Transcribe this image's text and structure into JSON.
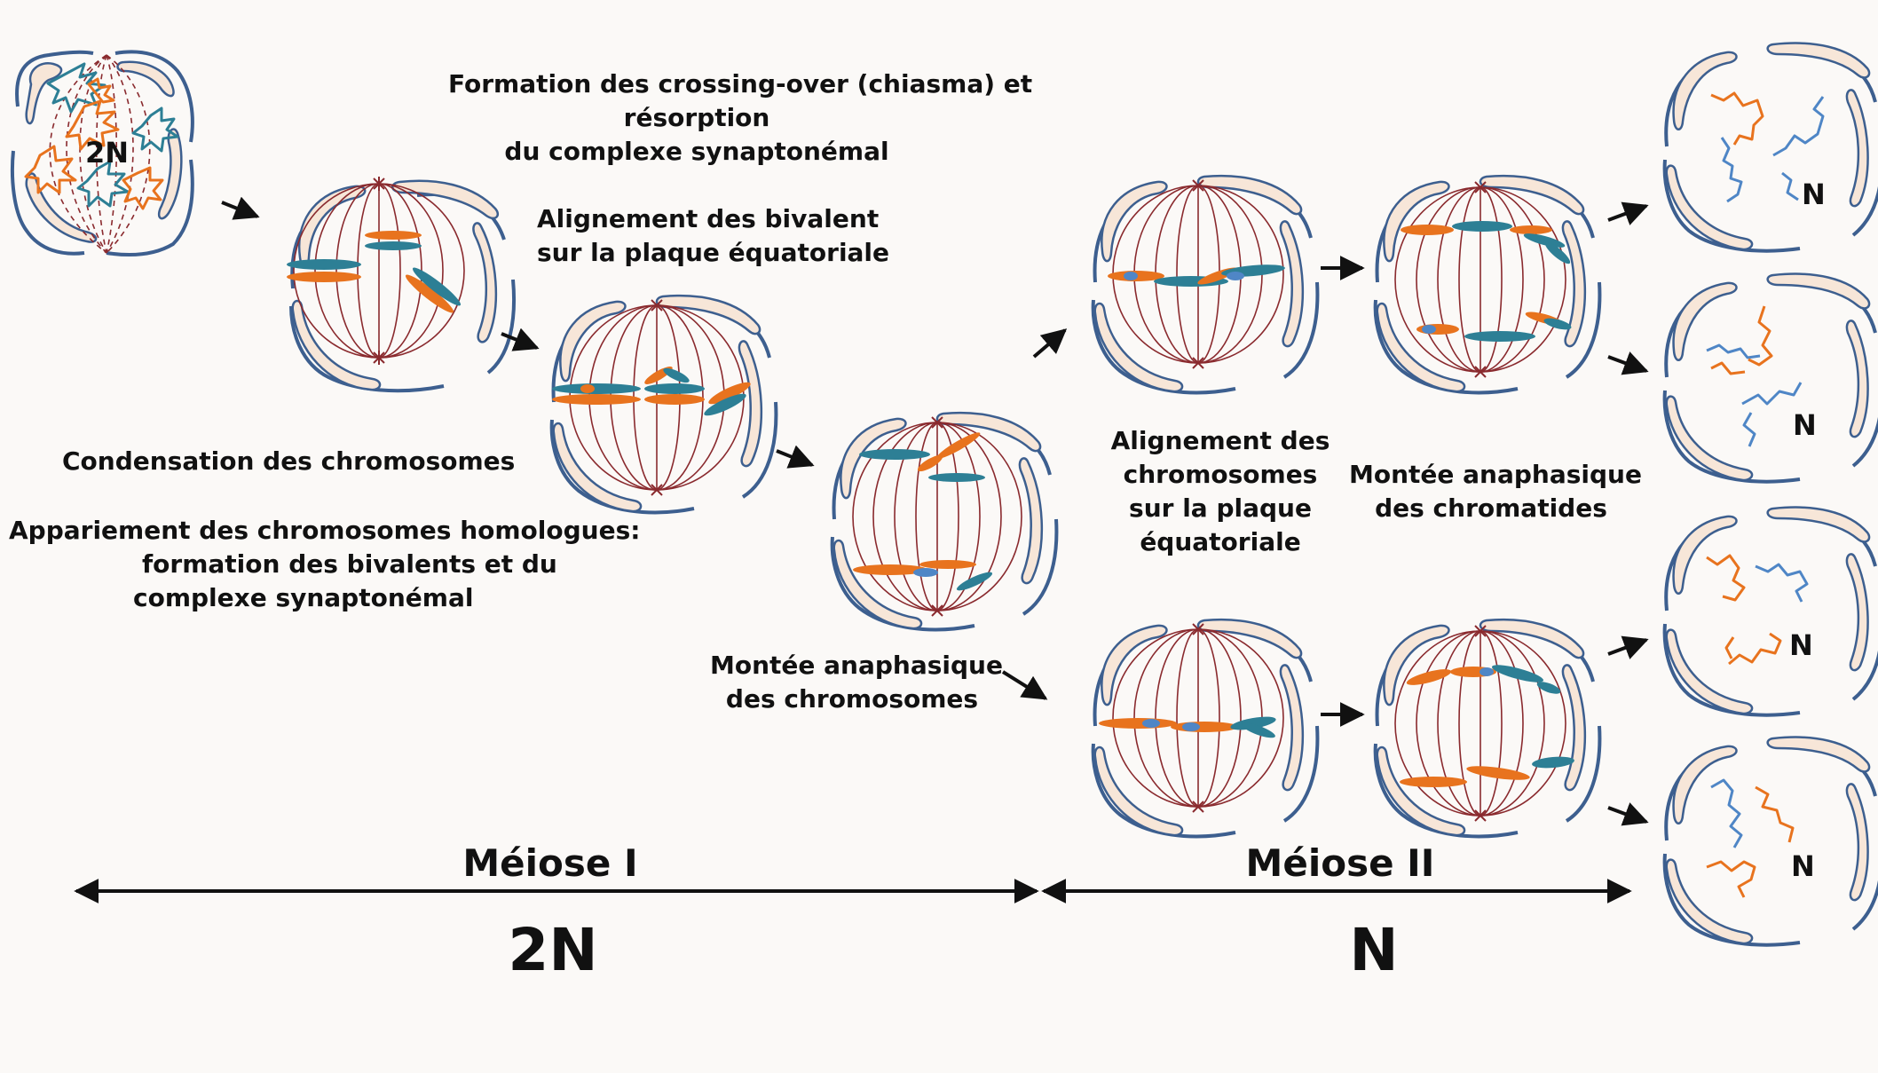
{
  "labels": {
    "crossing_1": "Formation des crossing-over (chiasma) et",
    "crossing_2": "résorption",
    "crossing_3": "du complexe synaptonémal",
    "align_biv_1": "Alignement des bivalent",
    "align_biv_2": "sur la plaque équatoriale",
    "condensation": "Condensation des chromosomes",
    "appariement_1": "Appariement des chromosomes homologues:",
    "appariement_2": "formation des bivalents et du",
    "appariement_3": "complexe synaptonémal",
    "anaph_chrom_1": "Montée anaphasique",
    "anaph_chrom_2": "des chromosomes",
    "align_chrom_1": "Alignement des",
    "align_chrom_2": "chromosomes",
    "align_chrom_3": "sur la plaque",
    "align_chrom_4": "équatoriale",
    "anaph_chromatides_1": "Montée anaphasique",
    "anaph_chromatides_2": "des chromatides",
    "meiose_1": "Méiose I",
    "meiose_2": "Méiose II",
    "ploidy_2n": "2N",
    "ploidy_n": "N",
    "cell_2n": "2N",
    "cell_n": "N"
  },
  "colors": {
    "background": "#fbf9f7",
    "membrane": "#3d5f8f",
    "nucleus_fill": "#f7e6d8",
    "spindle": "#8a2a2e",
    "chrom_orange": "#e8731e",
    "chrom_teal": "#2d7f95",
    "chrom_blue": "#4f86c6",
    "text": "#111111"
  }
}
